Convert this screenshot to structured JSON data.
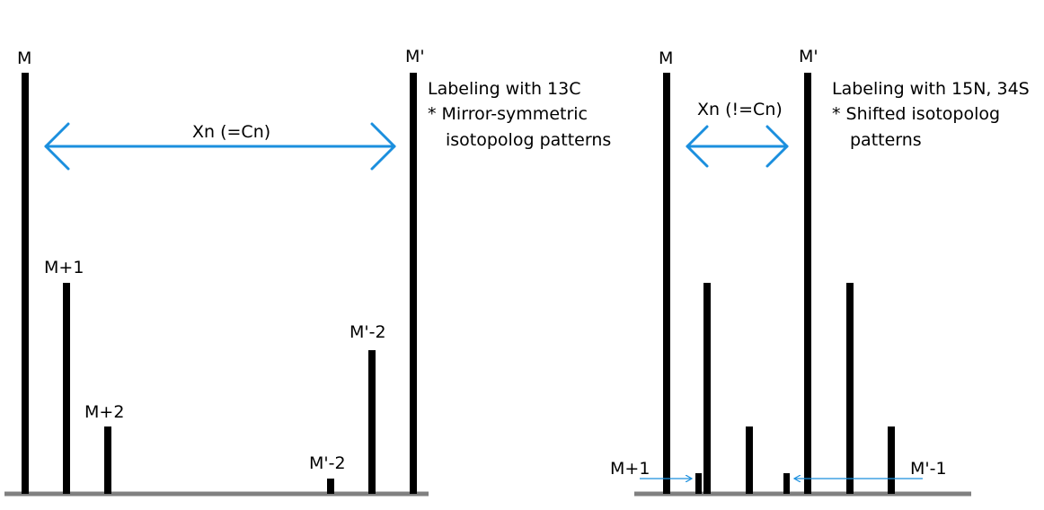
{
  "colors": {
    "bar": "#000000",
    "baseline": "#808080",
    "arrow": "#1b8fde",
    "background": "#ffffff"
  },
  "left_panel": {
    "peak_M_label": "M",
    "peak_Mprime_label": "M'",
    "peak_M1_label": "M+1",
    "peak_M2_label": "M+2",
    "peak_Mprime_minus2_small_label": "M'-2",
    "peak_Mprime_minus2_large_label": "M'-2",
    "arrow_label": "Xn (=Cn)",
    "note_line1": "Labeling with 13C",
    "note_line2": "* Mirror-symmetric",
    "note_line3": "isotopolog patterns",
    "relative_intensities": {
      "M": 1.0,
      "M+1": 0.5,
      "M+2": 0.16,
      "M'-2 (small)": 0.03,
      "M'-2 (large)": 0.34,
      "M'": 1.0
    }
  },
  "right_panel": {
    "peak_M_label": "M",
    "peak_Mprime_label": "M'",
    "peak_M1_label": "M+1",
    "peak_Mprime_minus1_label": "M'-1",
    "arrow_label": "Xn (!=Cn)",
    "note_line1": "Labeling with 15N, 34S",
    "note_line2": "* Shifted isotopolog",
    "note_line3": "patterns"
  }
}
